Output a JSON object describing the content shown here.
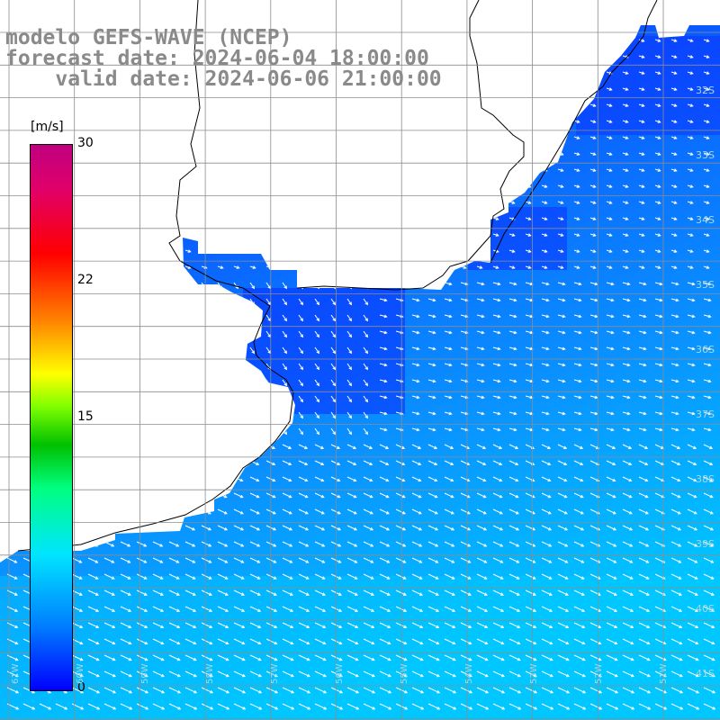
{
  "header": {
    "line1": "modelo GEFS-WAVE (NCEP)",
    "line2": "forecast date: 2024-06-04 18:00:00",
    "line3": "    valid date: 2024-06-06 21:00:00"
  },
  "colorbar": {
    "unit": "[m/s]",
    "ticks": [
      "30",
      "22",
      "15",
      "0"
    ]
  },
  "lat_labels": [
    "32S",
    "33S",
    "34S",
    "35S",
    "36S",
    "37S",
    "38S",
    "39S",
    "40S",
    "41S"
  ],
  "lon_labels": [
    "61W",
    "60W",
    "59W",
    "58W",
    "57W",
    "56W",
    "55W",
    "54W",
    "53W",
    "52W",
    "51W"
  ],
  "colors": {
    "ocean_deep": "#0a1cff",
    "ocean_mid": "#0060ff",
    "ocean_light": "#00b4ff",
    "arrow": "#ffffff",
    "land": "#ffffff",
    "grid": "#8c8c8c",
    "title": "#8a8a8a"
  }
}
